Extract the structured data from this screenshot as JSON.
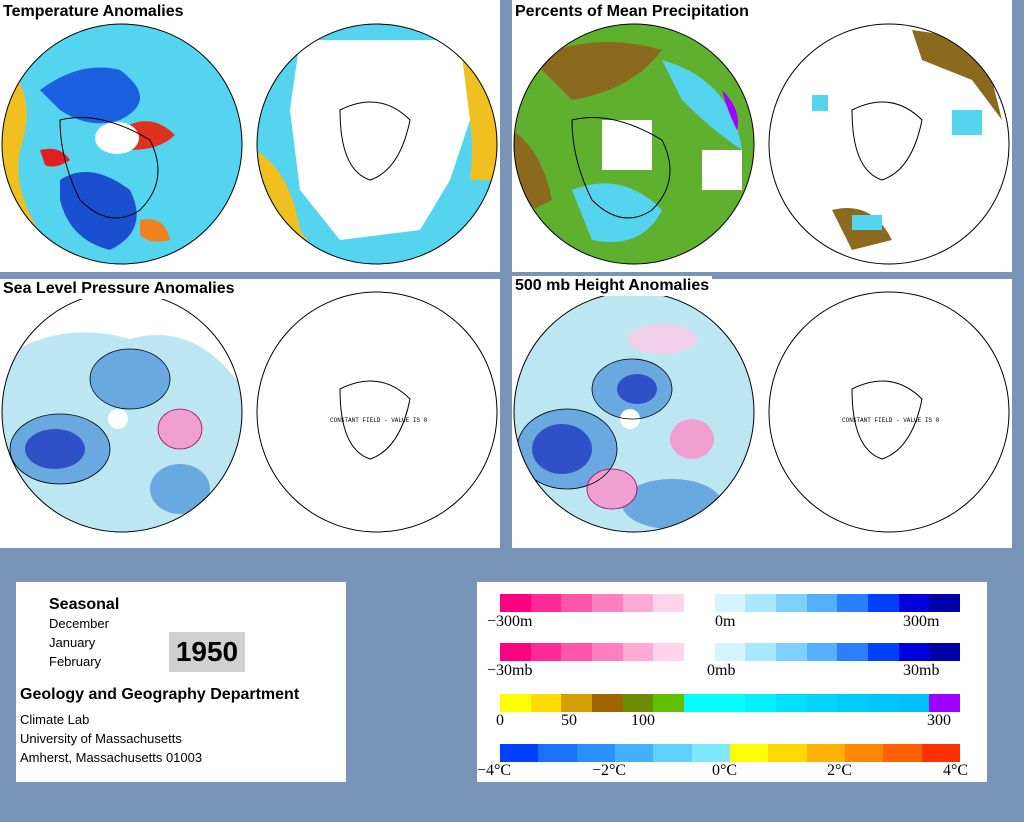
{
  "panels": {
    "temperature": {
      "title": "Temperature Anomalies"
    },
    "precipitation": {
      "title": "Percents of Mean Precipitation"
    },
    "slp": {
      "title": "Sea Level Pressure Anomalies",
      "south_label": "CONSTANT FIELD - VALUE IS 0"
    },
    "height500": {
      "title": "500 mb Height Anomalies",
      "south_label": "CONSTANT FIELD - VALUE IS 0"
    }
  },
  "info": {
    "season": "Seasonal",
    "months": [
      "December",
      "January",
      "February"
    ],
    "year": "1950",
    "department": "Geology and Geography Department",
    "lab": "Climate Lab",
    "university": "University of Massachusetts",
    "address": "Amherst, Massachusetts 01003"
  },
  "legends": {
    "height": {
      "labels": [
        "−300m",
        "0m",
        "300m"
      ],
      "colors": [
        "#ff0080",
        "#ff2a95",
        "#ff55ab",
        "#ff7fc0",
        "#ffaad5",
        "#ffd4ea",
        "#ffffff",
        "#d4f4ff",
        "#aae8ff",
        "#7fd0ff",
        "#55b0ff",
        "#2a80ff",
        "#0040ff",
        "#0000dd",
        "#0000aa"
      ]
    },
    "pressure": {
      "labels": [
        "−30mb",
        "0mb",
        "30mb"
      ],
      "colors": [
        "#ff0080",
        "#ff2a95",
        "#ff55ab",
        "#ff7fc0",
        "#ffaad5",
        "#ffd4ea",
        "#ffffff",
        "#d4f4ff",
        "#aae8ff",
        "#7fd0ff",
        "#55b0ff",
        "#2a80ff",
        "#0040ff",
        "#0000dd",
        "#0000aa"
      ]
    },
    "precip": {
      "labels": [
        "0",
        "50",
        "100",
        "300"
      ],
      "colors": [
        "#ffff00",
        "#ffdd00",
        "#d4a000",
        "#a06400",
        "#6e8c00",
        "#60c000",
        "#00ffff",
        "#00ffff",
        "#00f0ff",
        "#00e0ff",
        "#00d4ff",
        "#00ccff",
        "#00c4ff",
        "#00c0ff",
        "#a000ff"
      ]
    },
    "temp": {
      "labels": [
        "−4°C",
        "−2°C",
        "0°C",
        "2°C",
        "4°C"
      ],
      "colors": [
        "#0040ff",
        "#1a70ff",
        "#2a90ff",
        "#40b0ff",
        "#60d0ff",
        "#80e8ff",
        "#ffff00",
        "#ffd800",
        "#ffb000",
        "#ff8800",
        "#ff6000",
        "#ff3000"
      ]
    }
  },
  "colors": {
    "background": "#7a93b8",
    "cyan": "#55d4f0",
    "blue": "#1a60e0",
    "yellow": "#f0c020",
    "orange": "#f08020",
    "red": "#e02020",
    "brown": "#8b6a20",
    "green": "#60b030",
    "pale_blue": "#bce6f2",
    "mid_blue": "#6aa8e0",
    "pink": "#f0a0d0"
  }
}
